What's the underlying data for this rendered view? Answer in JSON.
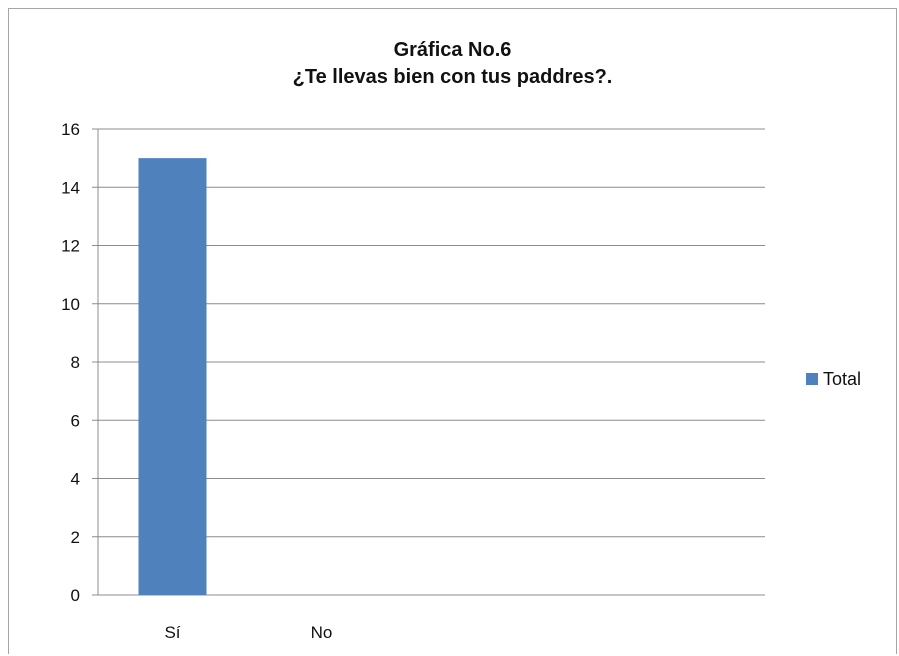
{
  "chart_data": {
    "type": "bar",
    "title": "Gráfica No.6",
    "subtitle": "¿Te llevas bien con tus paddres?.",
    "categories": [
      "Sí",
      "No"
    ],
    "series": [
      {
        "name": "Total",
        "values": [
          15,
          0
        ],
        "color": "#4f81bd"
      }
    ],
    "xlabel": "",
    "ylabel": "",
    "ylim": [
      0,
      16
    ],
    "yticks": [
      0,
      2,
      4,
      6,
      8,
      10,
      12,
      14,
      16
    ],
    "grid": true,
    "legend": "right"
  }
}
